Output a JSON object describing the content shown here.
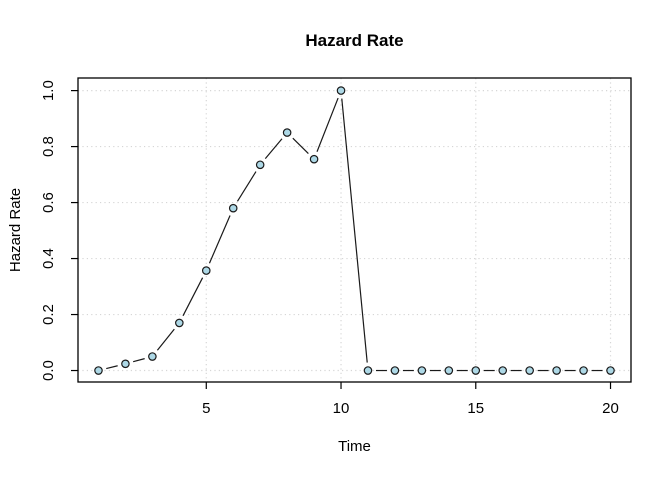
{
  "figure": {
    "background": "#ffffff"
  },
  "chart_data": {
    "type": "line",
    "title": "Hazard Rate",
    "xlabel": "Time",
    "ylabel": "Hazard Rate",
    "x": [
      1,
      2,
      3,
      4,
      5,
      6,
      7,
      8,
      9,
      10,
      11,
      12,
      13,
      14,
      15,
      16,
      17,
      18,
      19,
      20
    ],
    "y": [
      0,
      0.024,
      0.05,
      0.17,
      0.357,
      0.58,
      0.735,
      0.85,
      0.755,
      1.0,
      0,
      0,
      0,
      0,
      0,
      0,
      0,
      0,
      0,
      0
    ],
    "xticks": [
      5,
      10,
      15,
      20
    ],
    "xtick_labels": [
      "5",
      "10",
      "15",
      "20"
    ],
    "yticks": [
      0.0,
      0.2,
      0.4,
      0.6,
      0.8,
      1.0
    ],
    "ytick_labels": [
      "0.0",
      "0.2",
      "0.4",
      "0.6",
      "0.8",
      "1.0"
    ],
    "xlim": [
      0.24,
      20.76
    ],
    "ylim": [
      -0.041,
      1.045
    ],
    "grid": true,
    "grid_style": "dotted",
    "legend_position": "none",
    "marker": "filled-circle",
    "style": {
      "marker_fill": "#add8e6",
      "marker_stroke": "#1a1a1a",
      "line_color": "#1a1a1a",
      "grid_color": "#d6d6d6",
      "box_color": "#000000",
      "text_color": "#000000",
      "background": "#ffffff"
    }
  }
}
